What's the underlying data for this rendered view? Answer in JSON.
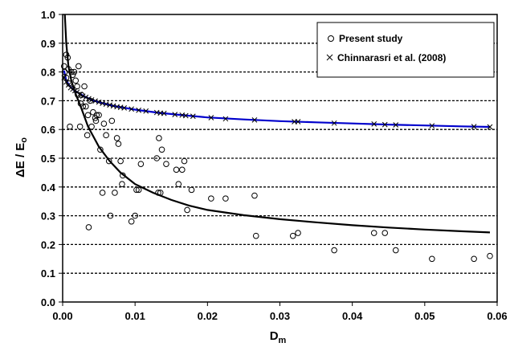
{
  "chart_data": {
    "type": "scatter",
    "title": "",
    "xlabel": "D",
    "xlabel_sub": "m",
    "ylabel": "ΔE / E",
    "ylabel_sub": "o",
    "xlim": [
      0,
      0.06
    ],
    "ylim": [
      0,
      1.0
    ],
    "xticks": [
      "0.00",
      "0.01",
      "0.02",
      "0.03",
      "0.04",
      "0.05",
      "0.06"
    ],
    "yticks": [
      "0.0",
      "0.1",
      "0.2",
      "0.3",
      "0.4",
      "0.5",
      "0.6",
      "0.7",
      "0.8",
      "0.9",
      "1.0"
    ],
    "grid": "horizontal-dotted",
    "legend_position": "top-right",
    "series": [
      {
        "name": "Present study",
        "marker": "open-circle",
        "color": "#000000",
        "points": [
          [
            0.0002,
            0.82
          ],
          [
            0.0003,
            0.8
          ],
          [
            0.0005,
            0.86
          ],
          [
            0.0005,
            0.78
          ],
          [
            0.0007,
            0.85
          ],
          [
            0.0008,
            0.81
          ],
          [
            0.0009,
            0.76
          ],
          [
            0.001,
            0.61
          ],
          [
            0.0012,
            0.8
          ],
          [
            0.0014,
            0.79
          ],
          [
            0.0016,
            0.8
          ],
          [
            0.0018,
            0.77
          ],
          [
            0.002,
            0.75
          ],
          [
            0.0021,
            0.72
          ],
          [
            0.0022,
            0.82
          ],
          [
            0.0024,
            0.61
          ],
          [
            0.0025,
            0.69
          ],
          [
            0.0026,
            0.72
          ],
          [
            0.0028,
            0.68
          ],
          [
            0.003,
            0.75
          ],
          [
            0.0032,
            0.68
          ],
          [
            0.0034,
            0.58
          ],
          [
            0.0035,
            0.65
          ],
          [
            0.0036,
            0.26
          ],
          [
            0.0038,
            0.7
          ],
          [
            0.004,
            0.61
          ],
          [
            0.0042,
            0.66
          ],
          [
            0.0045,
            0.64
          ],
          [
            0.0046,
            0.63
          ],
          [
            0.0047,
            0.65
          ],
          [
            0.005,
            0.65
          ],
          [
            0.0052,
            0.53
          ],
          [
            0.0055,
            0.38
          ],
          [
            0.0057,
            0.62
          ],
          [
            0.006,
            0.58
          ],
          [
            0.0064,
            0.49
          ],
          [
            0.0066,
            0.3
          ],
          [
            0.0068,
            0.63
          ],
          [
            0.0072,
            0.38
          ],
          [
            0.0075,
            0.57
          ],
          [
            0.0077,
            0.55
          ],
          [
            0.008,
            0.49
          ],
          [
            0.0082,
            0.41
          ],
          [
            0.0083,
            0.44
          ],
          [
            0.0095,
            0.28
          ],
          [
            0.01,
            0.3
          ],
          [
            0.0102,
            0.39
          ],
          [
            0.0105,
            0.39
          ],
          [
            0.0108,
            0.48
          ],
          [
            0.013,
            0.5
          ],
          [
            0.0132,
            0.38
          ],
          [
            0.0133,
            0.57
          ],
          [
            0.0135,
            0.38
          ],
          [
            0.0137,
            0.53
          ],
          [
            0.0143,
            0.48
          ],
          [
            0.0157,
            0.46
          ],
          [
            0.016,
            0.41
          ],
          [
            0.0165,
            0.46
          ],
          [
            0.0168,
            0.49
          ],
          [
            0.0172,
            0.32
          ],
          [
            0.0178,
            0.39
          ],
          [
            0.0205,
            0.36
          ],
          [
            0.0225,
            0.36
          ],
          [
            0.0265,
            0.37
          ],
          [
            0.0267,
            0.23
          ],
          [
            0.0318,
            0.23
          ],
          [
            0.0325,
            0.24
          ],
          [
            0.0375,
            0.18
          ],
          [
            0.043,
            0.24
          ],
          [
            0.0445,
            0.24
          ],
          [
            0.046,
            0.18
          ],
          [
            0.051,
            0.15
          ],
          [
            0.0568,
            0.15
          ],
          [
            0.059,
            0.16
          ]
        ]
      },
      {
        "name": "Chinnarasri et al. (2008)",
        "marker": "x",
        "color": "#000000",
        "line_color": "#0000cc",
        "points": [
          [
            0.0002,
            0.78
          ],
          [
            0.0005,
            0.765
          ],
          [
            0.0008,
            0.755
          ],
          [
            0.0011,
            0.745
          ],
          [
            0.0014,
            0.74
          ],
          [
            0.0017,
            0.735
          ],
          [
            0.002,
            0.73
          ],
          [
            0.0024,
            0.722
          ],
          [
            0.0028,
            0.716
          ],
          [
            0.0032,
            0.712
          ],
          [
            0.0036,
            0.707
          ],
          [
            0.004,
            0.703
          ],
          [
            0.0045,
            0.699
          ],
          [
            0.005,
            0.695
          ],
          [
            0.0055,
            0.691
          ],
          [
            0.006,
            0.688
          ],
          [
            0.0065,
            0.685
          ],
          [
            0.007,
            0.682
          ],
          [
            0.0075,
            0.679
          ],
          [
            0.008,
            0.677
          ],
          [
            0.0085,
            0.675
          ],
          [
            0.0095,
            0.671
          ],
          [
            0.0105,
            0.667
          ],
          [
            0.0115,
            0.664
          ],
          [
            0.013,
            0.659
          ],
          [
            0.0135,
            0.657
          ],
          [
            0.014,
            0.656
          ],
          [
            0.0155,
            0.652
          ],
          [
            0.0165,
            0.65
          ],
          [
            0.017,
            0.648
          ],
          [
            0.018,
            0.646
          ],
          [
            0.0205,
            0.641
          ],
          [
            0.0225,
            0.637
          ],
          [
            0.0265,
            0.633
          ],
          [
            0.032,
            0.627
          ],
          [
            0.0325,
            0.627
          ],
          [
            0.0375,
            0.622
          ],
          [
            0.043,
            0.619
          ],
          [
            0.0445,
            0.617
          ],
          [
            0.046,
            0.616
          ],
          [
            0.051,
            0.613
          ],
          [
            0.0568,
            0.61
          ],
          [
            0.059,
            0.609
          ]
        ]
      }
    ],
    "curves": [
      {
        "name": "fit-black",
        "color": "#000000",
        "points": [
          [
            0.0003,
            1.0
          ],
          [
            0.0005,
            0.9
          ],
          [
            0.0008,
            0.82
          ],
          [
            0.0012,
            0.77
          ],
          [
            0.0017,
            0.73
          ],
          [
            0.0025,
            0.68
          ],
          [
            0.0035,
            0.61
          ],
          [
            0.005,
            0.54
          ],
          [
            0.0065,
            0.49
          ],
          [
            0.008,
            0.45
          ],
          [
            0.01,
            0.41
          ],
          [
            0.0125,
            0.38
          ],
          [
            0.015,
            0.355
          ],
          [
            0.0175,
            0.335
          ],
          [
            0.02,
            0.32
          ],
          [
            0.025,
            0.302
          ],
          [
            0.03,
            0.288
          ],
          [
            0.035,
            0.277
          ],
          [
            0.04,
            0.267
          ],
          [
            0.045,
            0.259
          ],
          [
            0.05,
            0.252
          ],
          [
            0.055,
            0.246
          ],
          [
            0.059,
            0.242
          ]
        ]
      },
      {
        "name": "fit-blue",
        "color": "#0000cc",
        "points": [
          [
            0.0002,
            0.805
          ],
          [
            0.0005,
            0.77
          ],
          [
            0.001,
            0.75
          ],
          [
            0.0015,
            0.738
          ],
          [
            0.002,
            0.73
          ],
          [
            0.003,
            0.715
          ],
          [
            0.004,
            0.703
          ],
          [
            0.005,
            0.695
          ],
          [
            0.007,
            0.682
          ],
          [
            0.01,
            0.669
          ],
          [
            0.013,
            0.659
          ],
          [
            0.016,
            0.651
          ],
          [
            0.02,
            0.642
          ],
          [
            0.025,
            0.635
          ],
          [
            0.03,
            0.629
          ],
          [
            0.035,
            0.625
          ],
          [
            0.04,
            0.621
          ],
          [
            0.045,
            0.617
          ],
          [
            0.05,
            0.614
          ],
          [
            0.055,
            0.611
          ],
          [
            0.059,
            0.609
          ]
        ]
      }
    ]
  }
}
